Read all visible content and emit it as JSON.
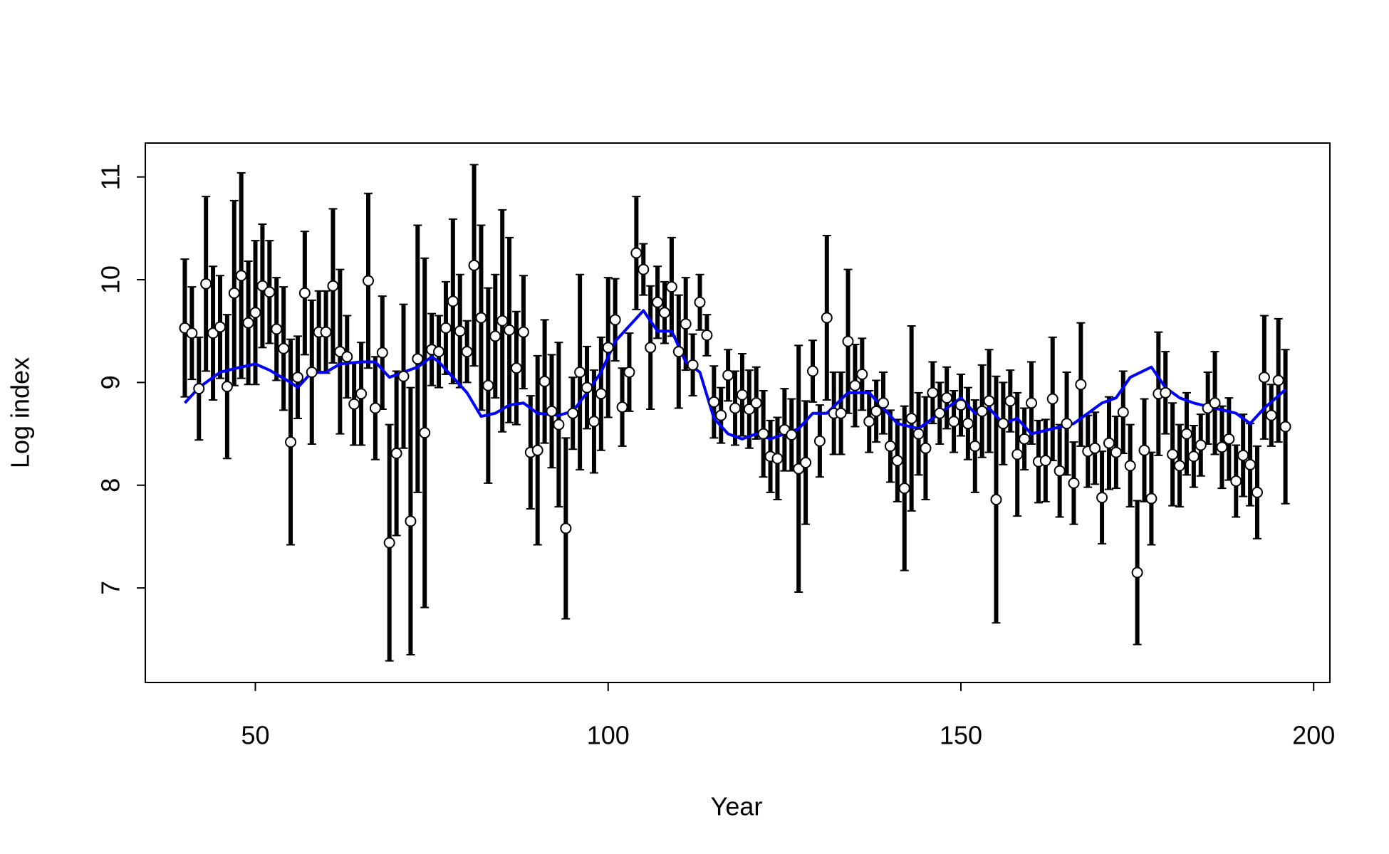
{
  "chart_data": {
    "type": "errorbar",
    "xlabel": "Year",
    "ylabel": "Log index",
    "xlim": [
      34.4,
      202.3
    ],
    "ylim": [
      6.08,
      11.33
    ],
    "xticks": [
      50,
      100,
      150,
      200
    ],
    "yticks": [
      7,
      8,
      9,
      10,
      11
    ],
    "series": [
      {
        "type": "errorbar",
        "color": "#000000",
        "x": [
          40,
          41,
          42,
          43,
          44,
          45,
          46,
          47,
          48,
          49,
          50,
          51,
          52,
          53,
          54,
          55,
          56,
          57,
          58,
          59,
          60,
          61,
          62,
          63,
          64,
          65,
          66,
          67,
          68,
          69,
          70,
          71,
          72,
          73,
          74,
          75,
          76,
          77,
          78,
          79,
          80,
          81,
          82,
          83,
          84,
          85,
          86,
          87,
          88,
          89,
          90,
          91,
          92,
          93,
          94,
          95,
          96,
          97,
          98,
          99,
          100,
          101,
          102,
          103,
          104,
          105,
          106,
          107,
          108,
          109,
          110,
          111,
          112,
          113,
          114,
          115,
          116,
          117,
          118,
          119,
          120,
          121,
          122,
          123,
          124,
          125,
          126,
          127,
          128,
          129,
          130,
          131,
          132,
          133,
          134,
          135,
          136,
          137,
          138,
          139,
          140,
          141,
          142,
          143,
          144,
          145,
          146,
          147,
          148,
          149,
          150,
          151,
          152,
          153,
          154,
          155,
          156,
          157,
          158,
          159,
          160,
          161,
          162,
          163,
          164,
          165,
          166,
          167,
          168,
          169,
          170,
          171,
          172,
          173,
          174,
          175,
          176,
          177,
          178,
          179,
          180,
          181,
          182,
          183,
          184,
          185,
          186,
          187,
          188,
          189,
          190,
          191,
          192,
          193,
          194,
          195,
          196
        ],
        "values": [
          9.53,
          9.48,
          8.94,
          9.96,
          9.48,
          9.54,
          8.96,
          9.87,
          10.04,
          9.58,
          9.68,
          9.94,
          9.88,
          9.52,
          9.33,
          8.42,
          9.05,
          9.87,
          9.1,
          9.49,
          9.49,
          9.94,
          9.3,
          9.25,
          8.79,
          8.89,
          9.99,
          8.75,
          9.29,
          7.44,
          8.31,
          9.06,
          7.65,
          9.23,
          8.51,
          9.32,
          9.3,
          9.53,
          9.79,
          9.5,
          9.3,
          10.14,
          9.63,
          8.97,
          9.45,
          9.6,
          9.51,
          9.14,
          9.49,
          8.32,
          8.34,
          9.01,
          8.72,
          8.59,
          7.58,
          8.7,
          9.1,
          8.95,
          8.62,
          8.89,
          9.34,
          9.61,
          8.76,
          9.1,
          10.26,
          10.1,
          9.34,
          9.78,
          9.68,
          9.93,
          9.3,
          9.57,
          9.17,
          9.78,
          9.46,
          8.81,
          8.68,
          9.07,
          8.75,
          8.88,
          8.74,
          8.8,
          8.5,
          8.28,
          8.26,
          8.54,
          8.49,
          8.16,
          8.22,
          9.11,
          8.43,
          9.63,
          8.7,
          8.7,
          9.4,
          8.97,
          9.08,
          8.62,
          8.72,
          8.8,
          8.38,
          8.24,
          7.97,
          8.65,
          8.5,
          8.36,
          8.9,
          8.7,
          8.85,
          8.62,
          8.78,
          8.6,
          8.38,
          8.72,
          8.82,
          7.86,
          8.6,
          8.82,
          8.3,
          8.45,
          8.8,
          8.23,
          8.24,
          8.84,
          8.14,
          8.6,
          8.02,
          8.98,
          8.33,
          8.36,
          7.88,
          8.41,
          8.32,
          8.71,
          8.19,
          7.15,
          8.34,
          7.87,
          8.89,
          8.9,
          8.3,
          8.19,
          8.5,
          8.28,
          8.39,
          8.75,
          8.8,
          8.37,
          8.45,
          8.04,
          8.29,
          8.2,
          7.93,
          9.05,
          8.68,
          9.02,
          8.57
        ],
        "errors": [
          0.67,
          0.45,
          0.5,
          0.85,
          0.65,
          0.5,
          0.7,
          0.9,
          1.0,
          0.6,
          0.7,
          0.6,
          0.5,
          0.5,
          0.6,
          1.0,
          0.4,
          0.6,
          0.7,
          0.4,
          0.4,
          0.75,
          0.8,
          0.4,
          0.4,
          0.5,
          0.85,
          0.5,
          0.55,
          1.15,
          0.8,
          0.7,
          1.3,
          1.3,
          1.7,
          0.35,
          0.35,
          0.45,
          0.8,
          0.55,
          0.3,
          0.98,
          0.9,
          0.95,
          0.6,
          1.08,
          0.9,
          0.55,
          0.55,
          0.55,
          0.92,
          0.6,
          0.55,
          0.8,
          0.88,
          0.35,
          0.95,
          0.4,
          0.5,
          0.55,
          0.68,
          0.4,
          0.38,
          0.38,
          0.55,
          0.25,
          0.6,
          0.35,
          0.3,
          0.48,
          0.55,
          0.45,
          0.3,
          0.27,
          0.2,
          0.35,
          0.27,
          0.25,
          0.36,
          0.4,
          0.38,
          0.35,
          0.42,
          0.35,
          0.4,
          0.4,
          0.35,
          1.2,
          0.6,
          0.3,
          0.35,
          0.8,
          0.4,
          0.4,
          0.7,
          0.4,
          0.35,
          0.3,
          0.3,
          0.3,
          0.35,
          0.4,
          0.8,
          0.9,
          0.4,
          0.5,
          0.3,
          0.3,
          0.3,
          0.3,
          0.3,
          0.35,
          0.45,
          0.45,
          0.5,
          1.2,
          0.4,
          0.3,
          0.6,
          0.3,
          0.4,
          0.4,
          0.4,
          0.6,
          0.45,
          0.5,
          0.4,
          0.6,
          0.35,
          0.35,
          0.45,
          0.45,
          0.35,
          0.4,
          0.4,
          0.7,
          0.5,
          0.45,
          0.6,
          0.4,
          0.5,
          0.4,
          0.4,
          0.3,
          0.3,
          0.35,
          0.5,
          0.4,
          0.4,
          0.35,
          0.4,
          0.4,
          0.45,
          0.6,
          0.3,
          0.6,
          0.75
        ]
      },
      {
        "type": "line",
        "color": "#0000ff",
        "x": [
          40,
          42,
          45,
          48,
          50,
          52,
          55,
          56,
          58,
          60,
          62,
          65,
          67,
          69,
          71,
          73,
          75,
          76,
          78,
          80,
          82,
          84,
          86,
          88,
          90,
          93,
          95,
          97,
          99,
          101,
          103,
          105,
          107,
          109,
          111,
          113,
          115,
          117,
          119,
          121,
          123,
          125,
          127,
          129,
          131,
          134,
          137,
          139,
          141,
          144,
          146,
          150,
          152,
          154,
          156,
          158,
          160,
          163,
          166,
          168,
          170,
          172,
          174,
          177,
          179,
          181,
          183,
          186,
          189,
          191,
          193,
          196
        ],
        "values": [
          8.8,
          8.95,
          9.1,
          9.15,
          9.18,
          9.12,
          9.0,
          8.95,
          9.1,
          9.1,
          9.18,
          9.2,
          9.2,
          9.05,
          9.1,
          9.15,
          9.25,
          9.2,
          9.05,
          8.9,
          8.67,
          8.7,
          8.78,
          8.8,
          8.7,
          8.68,
          8.72,
          8.9,
          9.1,
          9.4,
          9.55,
          9.7,
          9.5,
          9.5,
          9.2,
          9.1,
          8.65,
          8.5,
          8.45,
          8.5,
          8.45,
          8.5,
          8.55,
          8.7,
          8.7,
          8.9,
          8.9,
          8.75,
          8.6,
          8.55,
          8.65,
          8.85,
          8.7,
          8.75,
          8.6,
          8.65,
          8.5,
          8.55,
          8.6,
          8.7,
          8.8,
          8.85,
          9.05,
          9.15,
          8.95,
          8.85,
          8.8,
          8.75,
          8.7,
          8.6,
          8.75,
          8.93
        ]
      }
    ]
  }
}
